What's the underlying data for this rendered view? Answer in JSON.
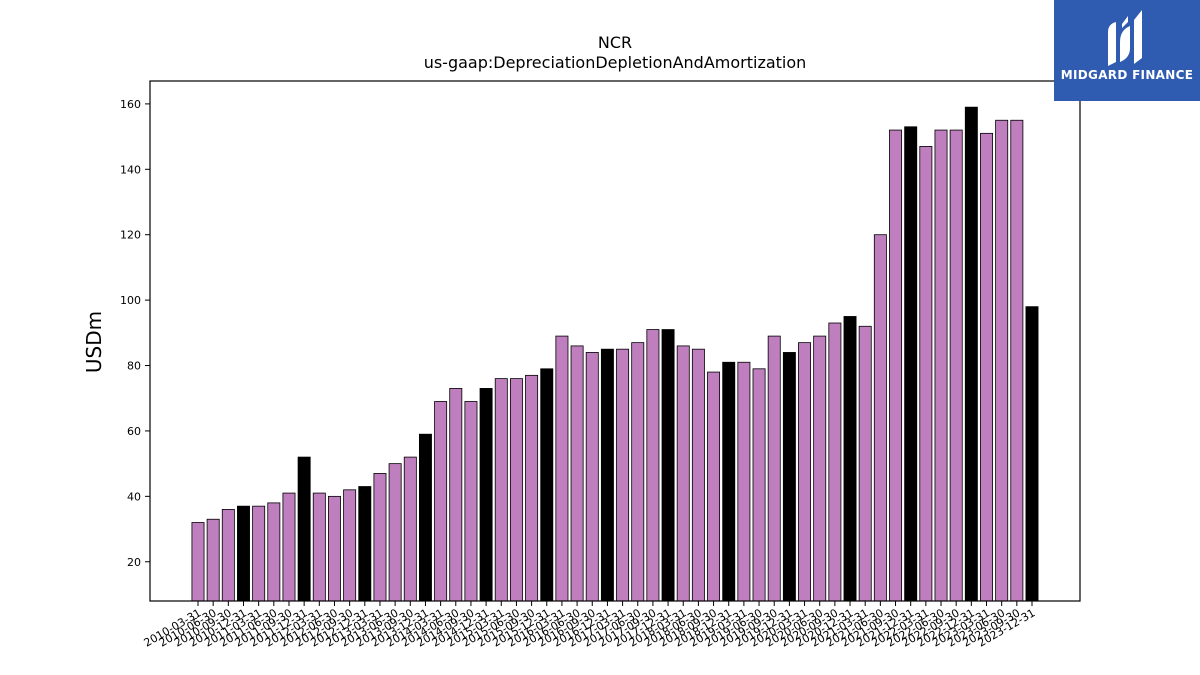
{
  "chart_data": {
    "type": "bar",
    "title": "NCR",
    "subtitle": "us-gaap:DepreciationDepletionAndAmortization",
    "xlabel": "",
    "ylabel": "USDm",
    "ylim": [
      8,
      167
    ],
    "yticks": [
      20,
      40,
      60,
      80,
      100,
      120,
      140,
      160
    ],
    "grid": false,
    "colors": {
      "quarter": "#bf7fbf",
      "annual": "#000000",
      "edge": "#000000"
    },
    "categories": [
      "2010-03-31",
      "2010-06-30",
      "2010-09-30",
      "2010-12-31",
      "2011-03-31",
      "2011-06-30",
      "2011-09-30",
      "2011-12-31",
      "2012-03-31",
      "2012-06-30",
      "2012-09-30",
      "2012-12-31",
      "2013-03-31",
      "2013-06-30",
      "2013-09-30",
      "2013-12-31",
      "2014-03-31",
      "2014-06-30",
      "2014-09-30",
      "2014-12-31",
      "2015-03-31",
      "2015-06-30",
      "2015-09-30",
      "2015-12-31",
      "2016-03-31",
      "2016-06-30",
      "2016-09-30",
      "2016-12-31",
      "2017-03-31",
      "2017-06-30",
      "2017-09-30",
      "2017-12-31",
      "2018-03-31",
      "2018-06-30",
      "2018-09-30",
      "2018-12-31",
      "2019-03-31",
      "2019-06-30",
      "2019-09-30",
      "2019-12-31",
      "2020-03-31",
      "2020-06-30",
      "2020-09-30",
      "2020-12-31",
      "2021-03-31",
      "2021-06-30",
      "2021-09-30",
      "2021-12-31",
      "2022-03-31",
      "2022-06-30",
      "2022-09-30",
      "2022-12-31",
      "2023-03-31",
      "2023-06-30",
      "2023-09-30",
      "2023-12-31"
    ],
    "values": [
      32,
      33,
      36,
      37,
      37,
      38,
      41,
      52,
      41,
      40,
      42,
      43,
      47,
      50,
      52,
      59,
      69,
      73,
      69,
      73,
      76,
      76,
      77,
      79,
      89,
      86,
      84,
      85,
      85,
      87,
      91,
      91,
      86,
      85,
      78,
      81,
      81,
      79,
      89,
      84,
      87,
      89,
      93,
      95,
      92,
      120,
      152,
      153,
      147,
      152,
      152,
      159,
      151,
      155,
      155,
      98
    ],
    "highlighted": [
      "2010-12-31",
      "2011-12-31",
      "2012-12-31",
      "2013-12-31",
      "2014-12-31",
      "2015-12-31",
      "2016-12-31",
      "2017-12-31",
      "2018-12-31",
      "2019-12-31",
      "2020-12-31",
      "2021-12-31",
      "2022-12-31",
      "2023-12-31"
    ]
  },
  "logo": {
    "text": "MIDGARD FINANCE",
    "background": "#2f5bb0"
  }
}
